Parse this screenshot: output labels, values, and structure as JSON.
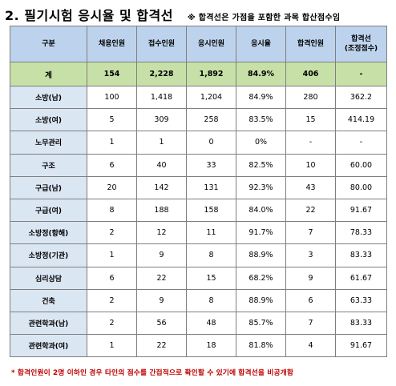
{
  "header": {
    "title": "2. 필기시험 응시율 및 합격선",
    "note": "※ 합격선은 가점을 포함한 과목 합산점수임"
  },
  "table": {
    "columns": [
      "구분",
      "채용인원",
      "접수인원",
      "응시인원",
      "응시율",
      "합격인원",
      "합격선\n(조정점수)"
    ],
    "total": [
      "계",
      "154",
      "2,228",
      "1,892",
      "84.9%",
      "406",
      "-"
    ],
    "rows": [
      [
        "소방(남)",
        "100",
        "1,418",
        "1,204",
        "84.9%",
        "280",
        "362.2"
      ],
      [
        "소방(여)",
        "5",
        "309",
        "258",
        "83.5%",
        "15",
        "414.19"
      ],
      [
        "노무관리",
        "1",
        "1",
        "0",
        "0%",
        "-",
        "-"
      ],
      [
        "구조",
        "6",
        "40",
        "33",
        "82.5%",
        "10",
        "60.00"
      ],
      [
        "구급(남)",
        "20",
        "142",
        "131",
        "92.3%",
        "43",
        "80.00"
      ],
      [
        "구급(여)",
        "8",
        "188",
        "158",
        "84.0%",
        "22",
        "91.67"
      ],
      [
        "소방정(항해)",
        "2",
        "12",
        "11",
        "91.7%",
        "7",
        "78.33"
      ],
      [
        "소방정(기관)",
        "1",
        "9",
        "8",
        "88.9%",
        "3",
        "83.33"
      ],
      [
        "심리상담",
        "6",
        "22",
        "15",
        "68.2%",
        "9",
        "61.67"
      ],
      [
        "건축",
        "2",
        "9",
        "8",
        "88.9%",
        "6",
        "63.33"
      ],
      [
        "관련학과(남)",
        "2",
        "56",
        "48",
        "85.7%",
        "7",
        "83.33"
      ],
      [
        "관련학과(여)",
        "1",
        "22",
        "18",
        "81.8%",
        "4",
        "91.67"
      ]
    ]
  },
  "footnote": "* 합격인원이 2명 이하인 경우 타인의 점수를 간접적으로 확인할 수 있기에 합격선을 비공개함"
}
